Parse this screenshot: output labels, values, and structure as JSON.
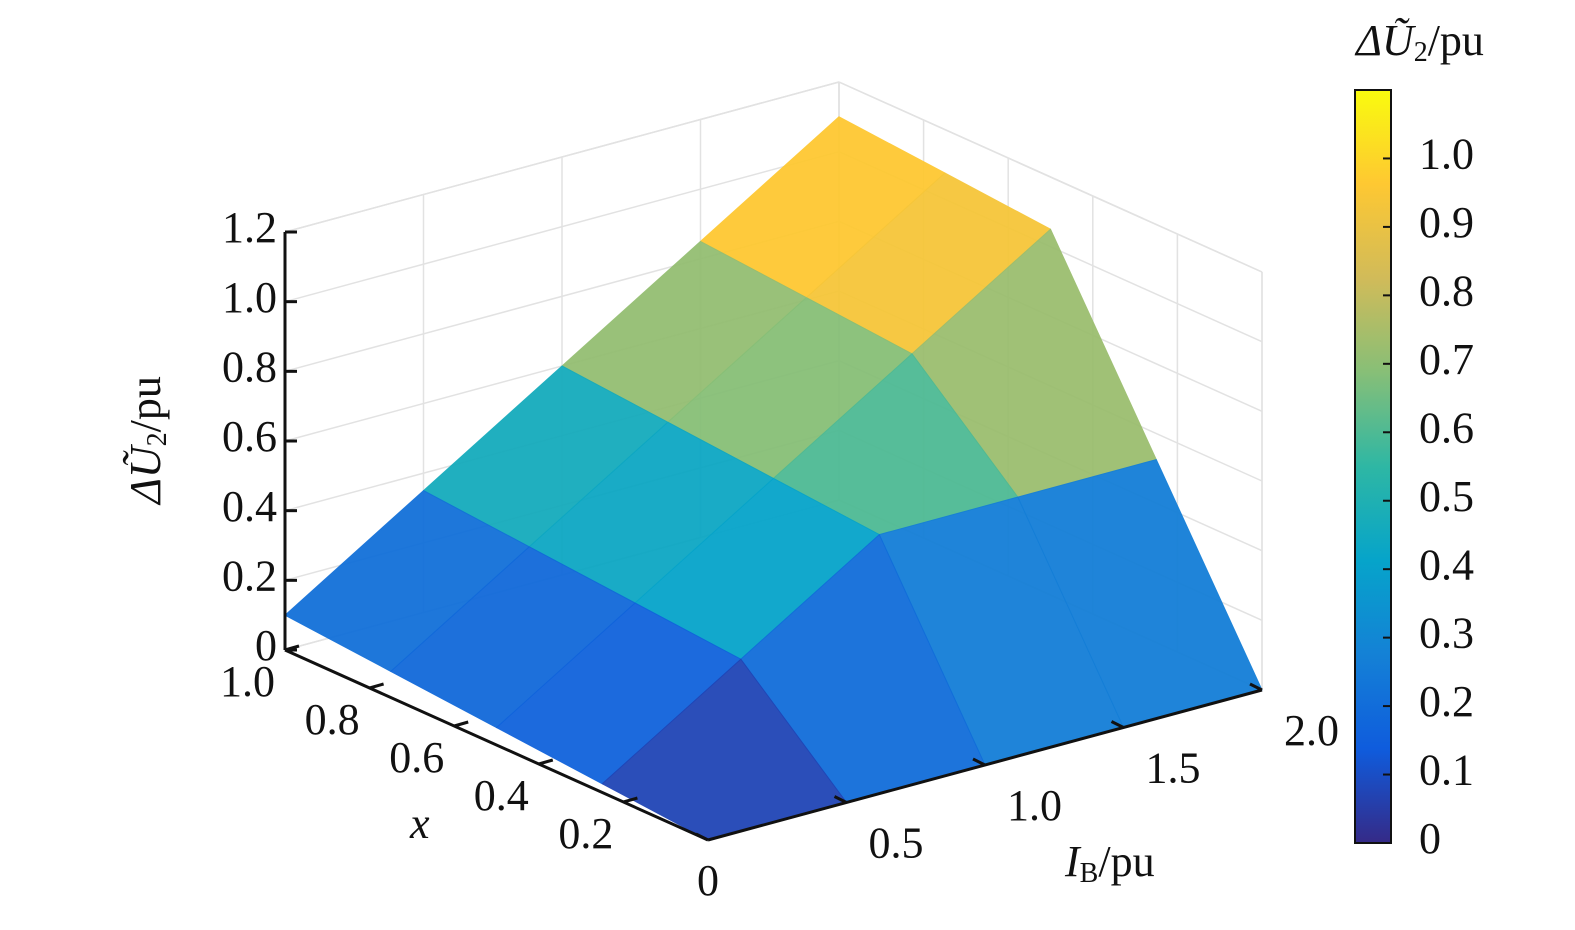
{
  "chart_data": {
    "type": "surface",
    "x_label": {
      "var": "I",
      "sub": "B",
      "unit": "/pu"
    },
    "y_label": {
      "var": "x"
    },
    "z_label": {
      "var": "ΔŨ",
      "sub": "2",
      "unit": "/pu"
    },
    "colorbar_label": {
      "var": "ΔŨ",
      "sub": "2",
      "unit": "/pu"
    },
    "x": [
      0,
      0.5,
      1,
      1.5,
      2
    ],
    "y": [
      0,
      0.25,
      0.5,
      0.75,
      1
    ],
    "z": [
      [
        0,
        0.025,
        0.05,
        0.075,
        0.1
      ],
      [
        0,
        0.275,
        0.3,
        0.325,
        0.35
      ],
      [
        0,
        0.525,
        0.55,
        0.575,
        0.6
      ],
      [
        0,
        0.525,
        0.8,
        0.825,
        0.85
      ],
      [
        0,
        0.525,
        1.05,
        1.075,
        1.1
      ]
    ],
    "xlim": [
      0,
      2
    ],
    "ylim": [
      0,
      1
    ],
    "zlim": [
      0,
      1.2
    ],
    "xticks": [
      0,
      0.5,
      {
        "value": 1,
        "label": "1.0"
      },
      1.5,
      {
        "value": 2,
        "label": "2.0"
      }
    ],
    "yticks": [
      0.2,
      0.4,
      0.6,
      0.8,
      {
        "value": 1,
        "label": "1.0"
      }
    ],
    "zticks": [
      0,
      0.2,
      0.4,
      0.6,
      0.8,
      {
        "value": 1,
        "label": "1.0"
      },
      1.2
    ],
    "clim": [
      0,
      1.1
    ],
    "cticks": [
      0,
      0.1,
      0.2,
      0.3,
      0.4,
      0.5,
      0.6,
      0.7,
      0.8,
      0.9,
      {
        "value": 1,
        "label": "1.0"
      }
    ],
    "colormap": [
      "#352a87",
      "#0f5cdd",
      "#1481d6",
      "#06a4ca",
      "#2eb7a4",
      "#87bf77",
      "#d1bb59",
      "#fec832",
      "#f9fb0e"
    ],
    "grid": true
  }
}
